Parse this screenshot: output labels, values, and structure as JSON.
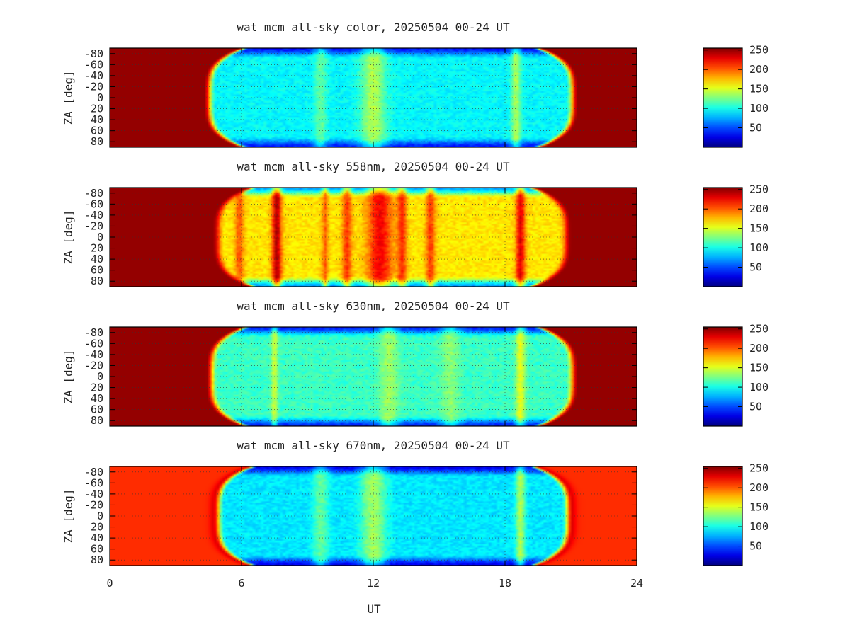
{
  "chart_data": {
    "type": "heatmap",
    "xlabel": "UT",
    "ylabel": "ZA [deg]",
    "xlim": [
      0,
      24
    ],
    "ylim": [
      -90,
      90
    ],
    "x_ticks": [
      0,
      6,
      12,
      18,
      24
    ],
    "y_ticks": [
      -80,
      -60,
      -40,
      -20,
      0,
      20,
      40,
      60,
      80
    ],
    "y_tick_labels": [
      "-80",
      "-60",
      "-40",
      "-20",
      "0",
      "20",
      "40",
      "60",
      "80"
    ],
    "colorbar_ticks": [
      50,
      100,
      150,
      200,
      250
    ],
    "colorbar_range": [
      0,
      255
    ],
    "colormap": "jet",
    "grid": true,
    "panels": [
      {
        "title": "wat mcm all-sky color, 20250504 00-24 UT",
        "day_level": 250,
        "night_level": 95,
        "dusk_end_ut": 4.8,
        "dawn_start_ut": 20.8,
        "edge_level": 30,
        "bright_events": [
          {
            "ut": 9.6,
            "width": 0.4,
            "level": 120
          },
          {
            "ut": 12.0,
            "width": 0.8,
            "level": 140
          },
          {
            "ut": 18.5,
            "width": 0.3,
            "level": 140
          }
        ]
      },
      {
        "title": "wat mcm all-sky 558nm, 20250504 00-24 UT",
        "day_level": 250,
        "night_level": 165,
        "dusk_end_ut": 5.2,
        "dawn_start_ut": 20.5,
        "edge_level": 60,
        "bright_events": [
          {
            "ut": 5.9,
            "width": 0.3,
            "level": 200
          },
          {
            "ut": 7.6,
            "width": 0.3,
            "level": 245
          },
          {
            "ut": 9.8,
            "width": 0.2,
            "level": 200
          },
          {
            "ut": 10.8,
            "width": 0.3,
            "level": 210
          },
          {
            "ut": 12.3,
            "width": 0.8,
            "level": 225
          },
          {
            "ut": 13.3,
            "width": 0.3,
            "level": 215
          },
          {
            "ut": 14.6,
            "width": 0.3,
            "level": 210
          },
          {
            "ut": 18.7,
            "width": 0.3,
            "level": 230
          }
        ]
      },
      {
        "title": "wat mcm all-sky 630nm, 20250504 00-24 UT",
        "day_level": 250,
        "night_level": 110,
        "dusk_end_ut": 4.9,
        "dawn_start_ut": 20.8,
        "edge_level": 30,
        "bright_events": [
          {
            "ut": 7.5,
            "width": 0.2,
            "level": 150
          },
          {
            "ut": 12.7,
            "width": 0.6,
            "level": 135
          },
          {
            "ut": 15.5,
            "width": 0.6,
            "level": 130
          },
          {
            "ut": 18.7,
            "width": 0.3,
            "level": 155
          }
        ]
      },
      {
        "title": "wat mcm all-sky 670nm, 20250504 00-24 UT",
        "day_level": 212,
        "night_level": 90,
        "dusk_end_ut": 5.2,
        "dawn_start_ut": 20.6,
        "edge_level": 20,
        "twilight_peak_level": 250,
        "bright_events": [
          {
            "ut": 9.6,
            "width": 0.5,
            "level": 120
          },
          {
            "ut": 12.0,
            "width": 0.8,
            "level": 135
          },
          {
            "ut": 18.7,
            "width": 0.3,
            "level": 140
          }
        ]
      }
    ]
  }
}
